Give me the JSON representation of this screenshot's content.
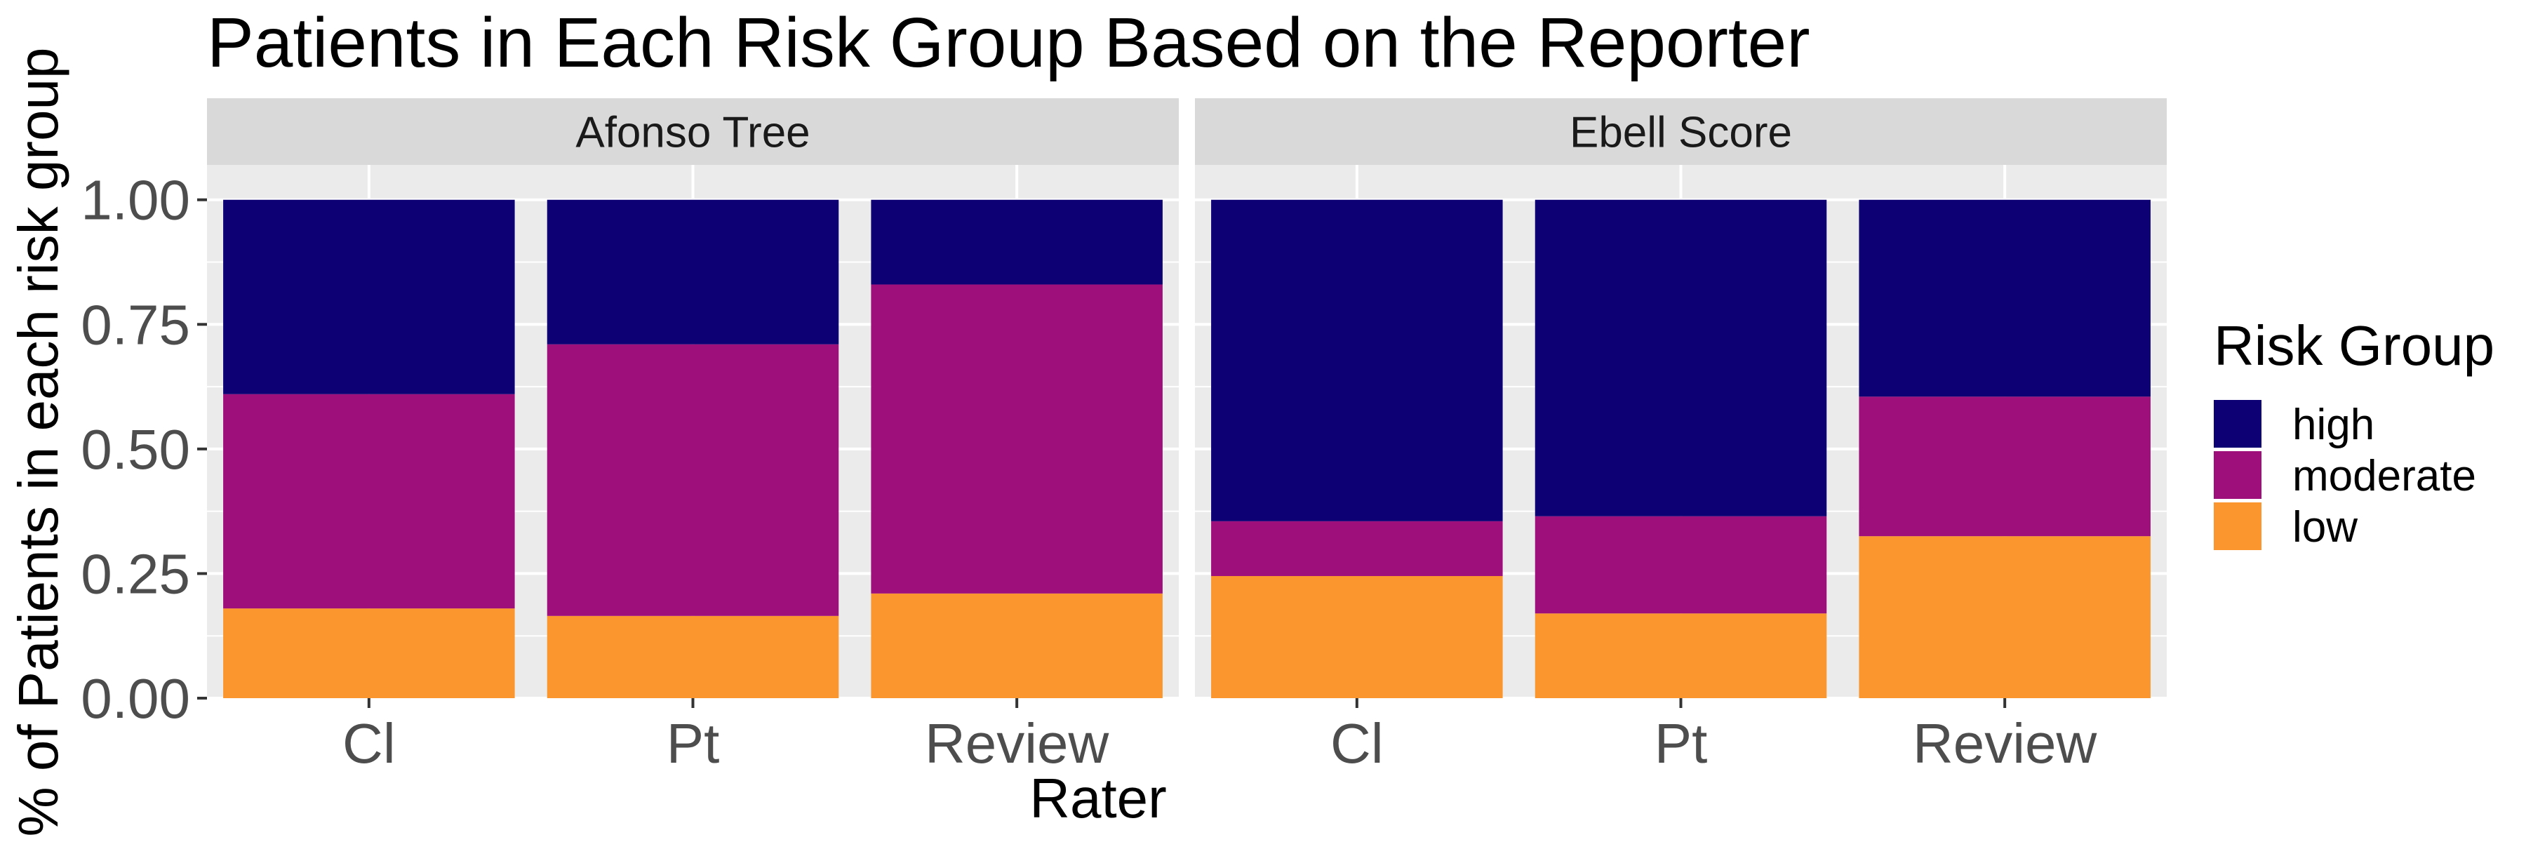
{
  "chart_data": {
    "type": "bar",
    "stacked": true,
    "title": "Patients in Each Risk Group Based on the Reporter",
    "xlabel": "Rater",
    "ylabel": "% of Patients in each risk group",
    "ylim": [
      0,
      1.07
    ],
    "yticks": [
      "0.00",
      "0.25",
      "0.50",
      "0.75",
      "1.00"
    ],
    "grid": true,
    "legend": {
      "title": "Risk Group",
      "position": "right",
      "entries": [
        "high",
        "moderate",
        "low"
      ]
    },
    "colors": {
      "high": "#0d0074",
      "moderate": "#9e0f7b",
      "low": "#fa962d",
      "panel_bg": "#ebebeb",
      "strip_bg": "#d9d9d9",
      "grid": "#ffffff"
    },
    "panels": [
      {
        "name": "Afonso Tree",
        "categories": [
          "Cl",
          "Pt",
          "Review"
        ],
        "series": [
          {
            "name": "low",
            "values": [
              0.18,
              0.165,
              0.21
            ]
          },
          {
            "name": "moderate",
            "values": [
              0.43,
              0.545,
              0.62
            ]
          },
          {
            "name": "high",
            "values": [
              0.39,
              0.29,
              0.17
            ]
          }
        ]
      },
      {
        "name": "Ebell Score",
        "categories": [
          "Cl",
          "Pt",
          "Review"
        ],
        "series": [
          {
            "name": "low",
            "values": [
              0.245,
              0.17,
              0.325
            ]
          },
          {
            "name": "moderate",
            "values": [
              0.11,
              0.195,
              0.28
            ]
          },
          {
            "name": "high",
            "values": [
              0.645,
              0.635,
              0.395
            ]
          }
        ]
      }
    ]
  }
}
